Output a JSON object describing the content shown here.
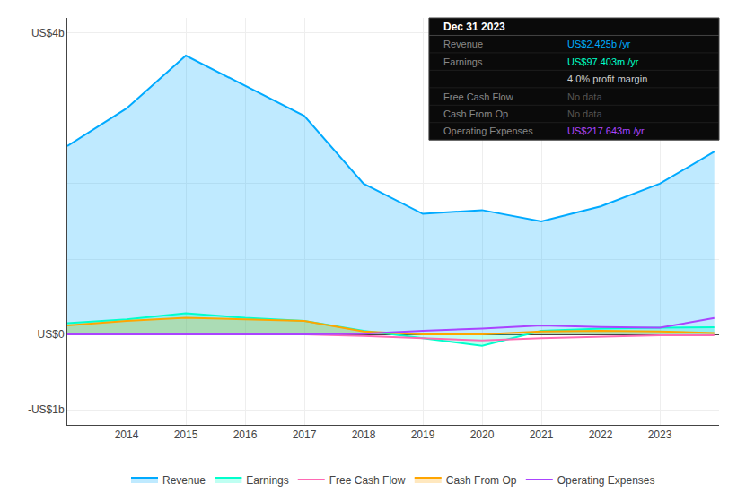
{
  "chart_data": {
    "type": "area",
    "x": [
      2013,
      2014,
      2015,
      2016,
      2017,
      2018,
      2019,
      2020,
      2021,
      2022,
      2023,
      2023.92
    ],
    "series": [
      {
        "name": "Revenue",
        "type": "area",
        "color": "#00aaff",
        "values": [
          2.5,
          3.0,
          3.7,
          3.3,
          2.9,
          2.0,
          1.6,
          1.65,
          1.5,
          1.7,
          2.0,
          2.425
        ]
      },
      {
        "name": "Earnings",
        "type": "area",
        "color": "#00ffcc",
        "values": [
          0.15,
          0.2,
          0.28,
          0.22,
          0.18,
          0.05,
          -0.05,
          -0.15,
          0.05,
          0.08,
          0.09,
          0.097
        ]
      },
      {
        "name": "Free Cash Flow",
        "type": "line",
        "color": "#ff69b4",
        "values": [
          0.0,
          0.0,
          0.0,
          0.0,
          0.0,
          -0.02,
          -0.05,
          -0.08,
          -0.05,
          -0.03,
          -0.01,
          -0.01
        ]
      },
      {
        "name": "Cash From Op",
        "type": "area",
        "color": "#ffa500",
        "values": [
          0.12,
          0.18,
          0.22,
          0.2,
          0.18,
          0.04,
          0.0,
          0.0,
          0.04,
          0.05,
          0.04,
          0.02
        ]
      },
      {
        "name": "Operating Expenses",
        "type": "line",
        "color": "#aa44ff",
        "values": [
          0.0,
          0.0,
          0.0,
          0.0,
          0.0,
          0.01,
          0.05,
          0.08,
          0.12,
          0.1,
          0.09,
          0.218
        ]
      }
    ],
    "xlim": [
      2013.0,
      2024.0
    ],
    "xticks": [
      2014,
      2015,
      2016,
      2017,
      2018,
      2019,
      2020,
      2021,
      2022,
      2023
    ],
    "ylim": [
      -1.2,
      4.2
    ],
    "yticks": [
      {
        "value": -1,
        "label": "-US$1b"
      },
      {
        "value": 0,
        "label": "US$0"
      },
      {
        "value": 1,
        "label": null
      },
      {
        "value": 2,
        "label": null
      },
      {
        "value": 3,
        "label": null
      },
      {
        "value": 4,
        "label": "US$4b"
      }
    ],
    "grid": true,
    "legend": "bottom",
    "info_box": {
      "title": "Dec 31 2023",
      "rows": [
        {
          "label": "Revenue",
          "value": "US$2.425b /yr",
          "color": "#00aaff"
        },
        {
          "label": "Earnings",
          "value": "US$97.403m /yr",
          "color": "#00ffcc"
        },
        {
          "value": "4.0% profit margin",
          "color": "#cccccc"
        },
        {
          "label": "Free Cash Flow",
          "value": "No data",
          "color": "#555555"
        },
        {
          "label": "Cash From Op",
          "value": "No data",
          "color": "#555555"
        },
        {
          "label": "Operating Expenses",
          "value": "US$217.643m /yr",
          "color": "#aa44ff"
        }
      ]
    }
  }
}
